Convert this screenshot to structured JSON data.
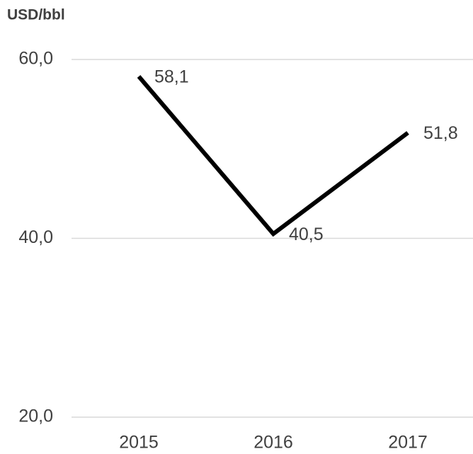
{
  "chart_data": {
    "type": "line",
    "title": "USD/bbl",
    "categories": [
      "2015",
      "2016",
      "2017"
    ],
    "values": [
      58.1,
      40.5,
      51.8
    ],
    "value_labels": [
      "58,1",
      "40,5",
      "51,8"
    ],
    "color": "#000000",
    "ylim": [
      20,
      60
    ],
    "yticks": [
      {
        "value": 20,
        "label": "20,0"
      },
      {
        "value": 40,
        "label": "40,0"
      },
      {
        "value": 60,
        "label": "60,0"
      }
    ],
    "grid": true
  }
}
